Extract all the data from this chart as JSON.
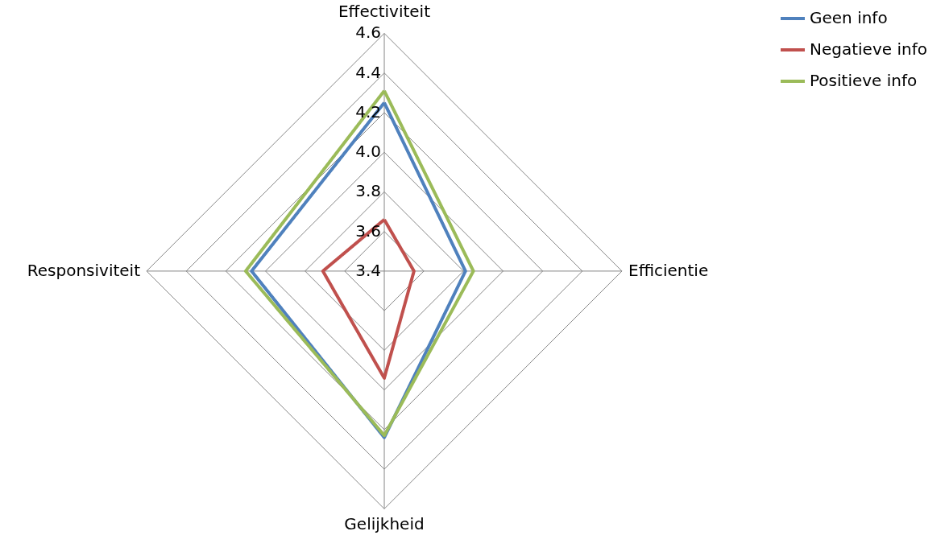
{
  "chart_data": {
    "type": "radar",
    "categories": [
      "Effectiviteit",
      "Efficientie",
      "Gelijkheid",
      "Responsiviteit"
    ],
    "series": [
      {
        "name": "Geen info",
        "color": "#4f81bd",
        "values": [
          4.25,
          3.81,
          4.24,
          4.07
        ]
      },
      {
        "name": "Negatieve info",
        "color": "#c0504d",
        "values": [
          3.66,
          3.55,
          3.94,
          3.71
        ]
      },
      {
        "name": "Positieve info",
        "color": "#9bbb59",
        "values": [
          4.31,
          3.85,
          4.23,
          4.1
        ]
      }
    ],
    "ylim": [
      3.4,
      4.6
    ],
    "yticks": [
      {
        "value": 3.4,
        "label": "3.4"
      },
      {
        "value": 3.6,
        "label": "3.6"
      },
      {
        "value": 3.8,
        "label": "3.8"
      },
      {
        "value": 4,
        "label": "4.0"
      },
      {
        "value": 4.2,
        "label": "4.2"
      },
      {
        "value": 4.4,
        "label": "4.4"
      },
      {
        "value": 4.6,
        "label": "4.6"
      }
    ],
    "grid": true,
    "legend": "right",
    "marker": "none",
    "line_style": "solid"
  }
}
